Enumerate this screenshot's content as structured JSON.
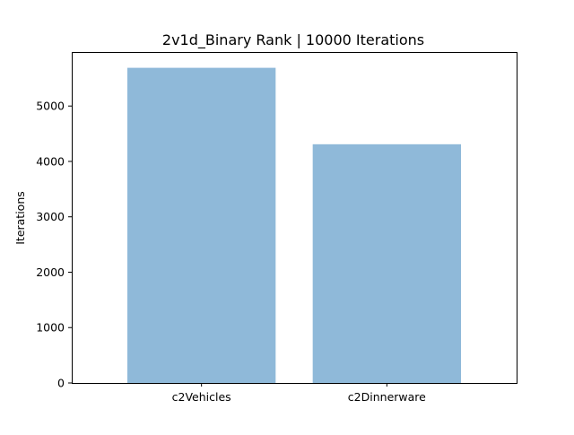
{
  "chart_data": {
    "type": "bar",
    "title": "2v1d_Binary Rank | 10000 Iterations",
    "xlabel": "",
    "ylabel": "Iterations",
    "categories": [
      "c2Vehicles",
      "c2Dinnerware"
    ],
    "values": [
      5690,
      4310
    ],
    "ylim": [
      0,
      5975
    ],
    "yticks": [
      0,
      1000,
      2000,
      3000,
      4000,
      5000
    ],
    "grid": false,
    "legend": "none",
    "bar_color": "#8fb9d9"
  }
}
